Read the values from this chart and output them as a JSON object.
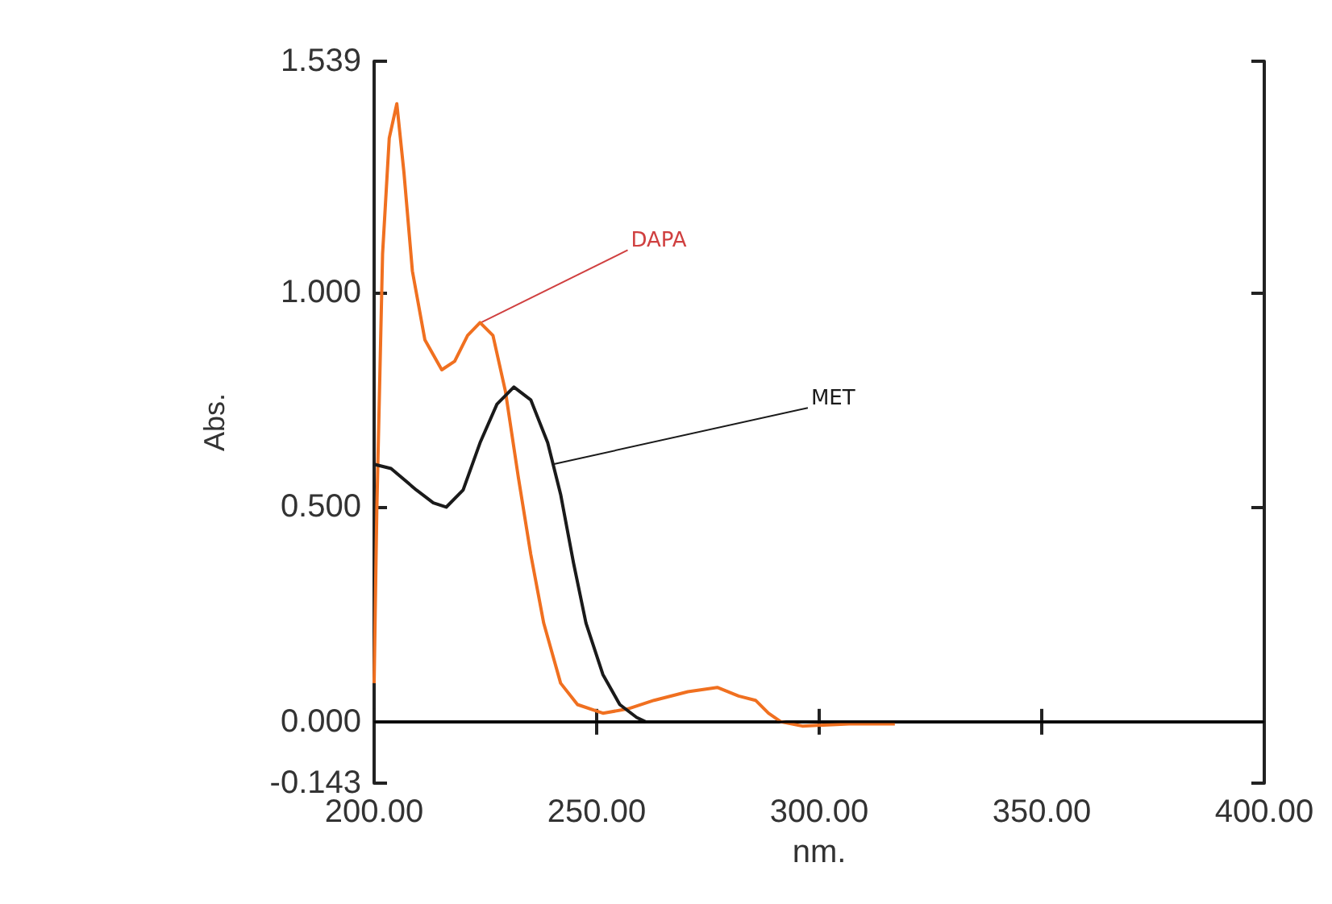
{
  "chart_data": {
    "type": "line",
    "xlabel": "nm.",
    "ylabel": "Abs.",
    "xlim": [
      200,
      400
    ],
    "xticks": [
      {
        "value": 200,
        "label": "200.00"
      },
      {
        "value": 250,
        "label": "250.00"
      },
      {
        "value": 300,
        "label": "300.00"
      },
      {
        "value": 350,
        "label": "350.00"
      },
      {
        "value": 400,
        "label": "400.00"
      }
    ],
    "ylim": [
      -0.143,
      1.539
    ],
    "yticks": [
      {
        "value": -0.143,
        "label": "-0.143"
      },
      {
        "value": 0,
        "label": "0.000"
      },
      {
        "value": 0.5,
        "label": "0.500"
      },
      {
        "value": 1,
        "label": "1.000"
      },
      {
        "value": 1.539,
        "label": "1.539"
      }
    ],
    "grid": false,
    "marker": "none",
    "line_style": "solid",
    "series": [
      {
        "color": "#f07020",
        "x": [
          200,
          200.6,
          201.9,
          203.4,
          205.1,
          206.7,
          208.6,
          211.4,
          215.2,
          218.1,
          221,
          223.8,
          226.7,
          229.5,
          232.4,
          235.2,
          238.1,
          241.9,
          245.7,
          251.4,
          257,
          262.9,
          270.5,
          277.1,
          281.9,
          285.7,
          288.6,
          291.4,
          296.2,
          306.7,
          317
        ],
        "values": [
          0.09,
          0.49,
          1.09,
          1.36,
          1.44,
          1.28,
          1.05,
          0.89,
          0.82,
          0.84,
          0.9,
          0.93,
          0.9,
          0.77,
          0.57,
          0.39,
          0.23,
          0.09,
          0.04,
          0.02,
          0.03,
          0.05,
          0.07,
          0.08,
          0.06,
          0.05,
          0.02,
          0,
          -0.01,
          -0.005,
          -0.005
        ]
      },
      {
        "color": "#1a1a1a",
        "x": [
          200,
          203.8,
          209.5,
          213.3,
          216.2,
          220,
          223.8,
          227.6,
          231.4,
          235.2,
          239,
          241.9,
          244.8,
          247.6,
          251.4,
          255.2,
          259,
          261
        ],
        "values": [
          0.6,
          0.59,
          0.54,
          0.51,
          0.5,
          0.54,
          0.65,
          0.74,
          0.78,
          0.75,
          0.65,
          0.53,
          0.37,
          0.23,
          0.11,
          0.04,
          0.01,
          0
        ]
      }
    ],
    "ref_lines": [
      {
        "axis": "y",
        "value": 0,
        "color": "#000000"
      }
    ],
    "annotations": [
      {
        "text": "DAPA",
        "x": 224,
        "y": 0.93
      },
      {
        "text": "MET",
        "x": 240.2,
        "y": 0.6
      }
    ]
  }
}
